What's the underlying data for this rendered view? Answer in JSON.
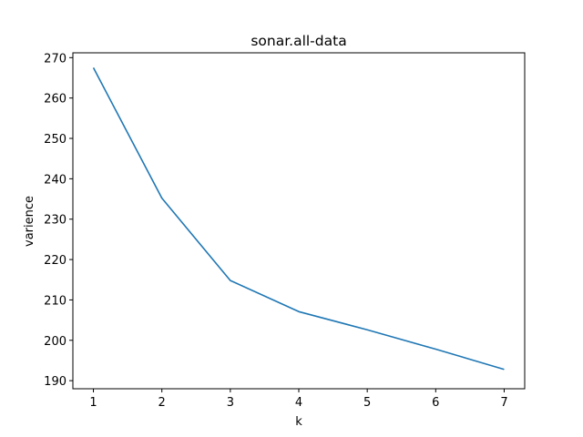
{
  "chart_data": {
    "type": "line",
    "title": "sonar.all-data",
    "xlabel": "k",
    "ylabel": "varience",
    "x": [
      1,
      2,
      3,
      4,
      5,
      6,
      7
    ],
    "series": [
      {
        "values": [
          267.5,
          235.2,
          214.8,
          207.1,
          202.6,
          197.8,
          192.8
        ],
        "color": "#1f77b4"
      }
    ],
    "xticks": [
      1,
      2,
      3,
      4,
      5,
      6,
      7
    ],
    "yticks": [
      190,
      200,
      210,
      220,
      230,
      240,
      250,
      260,
      270
    ],
    "xlim": [
      0.7,
      7.3
    ],
    "ylim": [
      188.0,
      271.2
    ],
    "grid": false,
    "legend": "none"
  }
}
